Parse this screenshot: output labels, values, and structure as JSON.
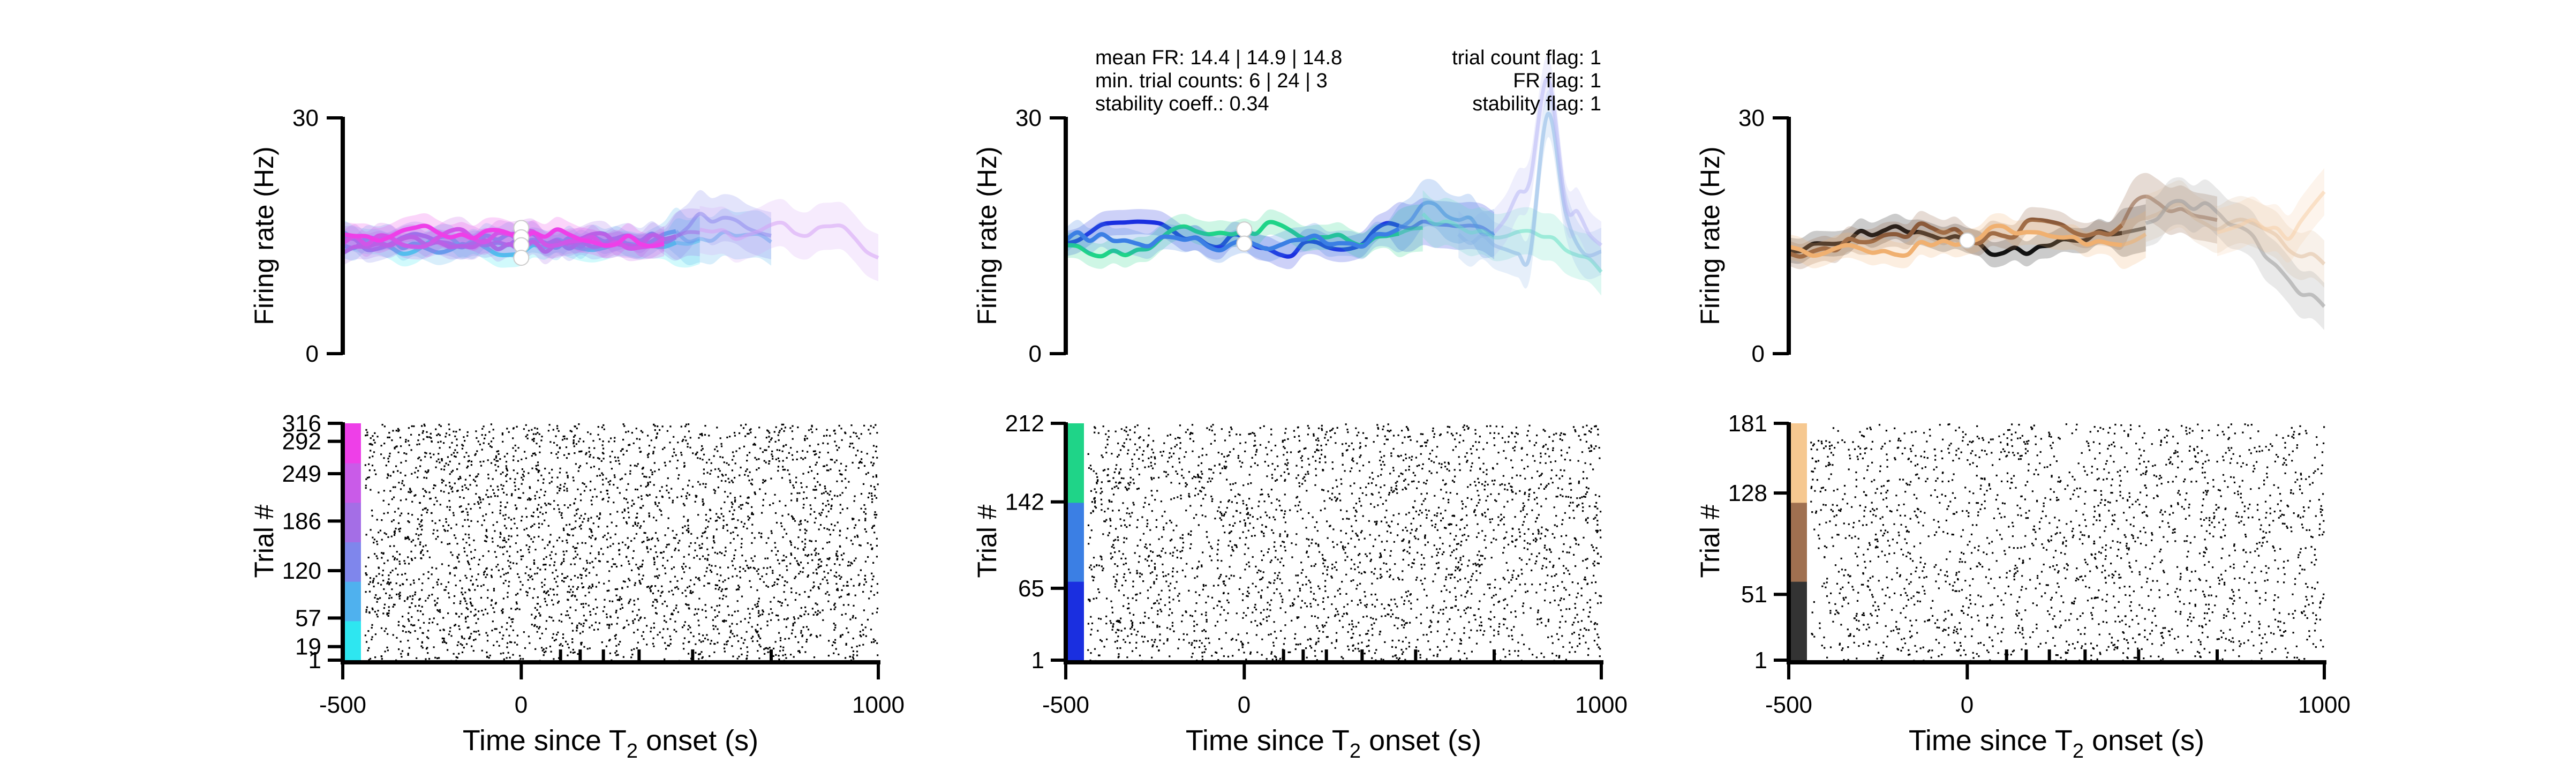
{
  "chart_data": [
    {
      "type": "line",
      "panel": "left",
      "ylabel": "Firing rate (Hz)",
      "ylim": [
        0,
        30
      ],
      "yticks": [
        "0",
        "30"
      ],
      "xlim": [
        -500,
        1000
      ],
      "colors": [
        "#2ee6f0",
        "#4fb1ee",
        "#7f86ec",
        "#a46ee6",
        "#c95be8",
        "#ee3fe8",
        "#d6a3f5"
      ],
      "series": [
        {
          "color": "#2ee6f0",
          "x": [
            -500,
            -400,
            -300,
            -200,
            -100,
            0,
            100,
            200,
            300,
            400,
            500
          ],
          "y": [
            15.5,
            14.2,
            13.0,
            14.8,
            13.5,
            12.8,
            14.5,
            13.2,
            14.0,
            13.6,
            14.4
          ]
        },
        {
          "color": "#4fb1ee",
          "x": [
            -500,
            -400,
            -300,
            -200,
            -100,
            0,
            100,
            200,
            300,
            400,
            500,
            600,
            700
          ],
          "y": [
            13.8,
            14.6,
            14.0,
            13.2,
            15.0,
            14.2,
            13.5,
            14.8,
            13.9,
            15.2,
            14.6,
            15.0,
            14.2
          ]
        },
        {
          "color": "#7f86ec",
          "x": [
            -500,
            -400,
            -300,
            -200,
            -100,
            0,
            100,
            200,
            300,
            400,
            500,
            600,
            700
          ],
          "y": [
            14.6,
            13.4,
            15.2,
            14.0,
            13.8,
            15.0,
            14.4,
            13.6,
            15.0,
            14.2,
            17.8,
            17.0,
            15.0
          ]
        },
        {
          "color": "#a46ee6",
          "x": [
            -500,
            -400,
            -300,
            -200,
            -100,
            0,
            100,
            200,
            300,
            400,
            500
          ],
          "y": [
            12.8,
            14.0,
            14.8,
            13.6,
            14.4,
            13.2,
            14.0,
            15.2,
            13.8,
            14.6,
            15.4
          ]
        },
        {
          "color": "#c95be8",
          "x": [
            -500,
            -400,
            -300,
            -200,
            -100,
            0,
            100,
            200,
            300,
            400
          ],
          "y": [
            14.0,
            15.0,
            13.6,
            15.6,
            14.2,
            15.4,
            13.8,
            14.8,
            13.4,
            14.6
          ]
        },
        {
          "color": "#ee3fe8",
          "x": [
            -500,
            -400,
            -300,
            -200,
            -100,
            0,
            100,
            200,
            300,
            400
          ],
          "y": [
            15.2,
            14.4,
            16.0,
            14.8,
            15.6,
            14.6,
            15.8,
            14.2,
            15.0,
            14.0
          ]
        },
        {
          "color": "#d6a3f5",
          "x": [
            500,
            600,
            700,
            800,
            900,
            1000
          ],
          "y": [
            15.8,
            14.6,
            16.4,
            15.0,
            16.2,
            12.2
          ]
        }
      ],
      "t2_markers": [
        16.0,
        14.8,
        13.8,
        12.2
      ]
    },
    {
      "type": "raster",
      "panel": "left",
      "ylabel": "Trial #",
      "xlabel": "Time since T",
      "xlabel_sub": "2",
      "xlabel_suffix": " onset (s)",
      "xticks": [
        "-500",
        "0",
        "1000"
      ],
      "yticks": [
        "1",
        "19",
        "57",
        "120",
        "186",
        "249",
        "292",
        "316"
      ],
      "ytick_values": [
        1,
        19,
        57,
        120,
        186,
        249,
        292,
        316
      ],
      "ymax": 316,
      "xlim": [
        -500,
        1000
      ],
      "extra_tick_x": [
        110,
        165,
        230,
        330,
        480,
        700
      ],
      "band_colors": [
        "#2ee6f0",
        "#4fb1ee",
        "#7f86ec",
        "#a46ee6",
        "#c95be8",
        "#ee3fe8"
      ],
      "dot_count": 3300
    },
    {
      "type": "line",
      "panel": "middle",
      "ylabel": "Firing rate (Hz)",
      "ylim": [
        0,
        30
      ],
      "yticks": [
        "0",
        "30"
      ],
      "xlim": [
        -500,
        1000
      ],
      "annotation_left": [
        "mean FR: 14.4 | 14.9 | 14.8",
        "min. trial counts: 6 | 24 | 3",
        "stability coeff.: 0.34"
      ],
      "annotation_right": [
        "trial count flag: 1",
        "FR flag: 1",
        "stability flag: 1"
      ],
      "colors": [
        "#1a2fe0",
        "#1fd488",
        "#3b7fe4",
        "#66e0c4",
        "#8cb8e6",
        "#b8b8f5"
      ],
      "series": [
        {
          "color": "#1a2fe0",
          "x": [
            -500,
            -400,
            -300,
            -200,
            -100,
            0,
            100,
            200,
            300,
            400,
            500,
            600,
            700
          ],
          "y": [
            14.0,
            16.4,
            16.8,
            15.6,
            13.8,
            14.8,
            12.6,
            14.2,
            13.4,
            16.6,
            16.8,
            16.2,
            15.0
          ]
        },
        {
          "color": "#1fd488",
          "x": [
            -500,
            -400,
            -300,
            -200,
            -100,
            0,
            100,
            200,
            300,
            400,
            500
          ],
          "y": [
            13.8,
            12.4,
            13.2,
            15.8,
            15.2,
            15.6,
            16.4,
            14.8,
            14.2,
            15.0,
            16.0
          ]
        },
        {
          "color": "#3b7fe4",
          "x": [
            -500,
            -400,
            -300,
            -200,
            -100,
            0,
            100,
            200,
            300,
            400,
            500,
            600,
            700
          ],
          "y": [
            14.4,
            15.2,
            14.0,
            14.8,
            13.6,
            14.4,
            13.8,
            15.0,
            14.0,
            15.2,
            19.0,
            17.0,
            15.4
          ]
        },
        {
          "color": "#66e0c4",
          "x": [
            500,
            600,
            700,
            800,
            900,
            1000
          ],
          "y": [
            17.8,
            16.2,
            14.8,
            15.6,
            13.2,
            10.4
          ]
        },
        {
          "color": "#8cb8e6",
          "x": [
            600,
            700,
            800,
            850,
            900,
            950,
            1000
          ],
          "y": [
            15.2,
            13.8,
            12.6,
            30.5,
            18.0,
            12.8,
            13.0
          ]
        },
        {
          "color": "#b8b8f5",
          "x": [
            700,
            800,
            850,
            900,
            1000
          ],
          "y": [
            15.4,
            22.0,
            35.0,
            19.0,
            13.8
          ]
        }
      ],
      "t2_markers": [
        15.8,
        14.0
      ]
    },
    {
      "type": "raster",
      "panel": "middle",
      "ylabel": "Trial #",
      "xlabel": "Time since T",
      "xlabel_sub": "2",
      "xlabel_suffix": " onset (s)",
      "xticks": [
        "-500",
        "0",
        "1000"
      ],
      "yticks": [
        "1",
        "65",
        "142",
        "212"
      ],
      "ytick_values": [
        1,
        65,
        142,
        212
      ],
      "ymax": 212,
      "xlim": [
        -500,
        1000
      ],
      "extra_tick_x": [
        110,
        165,
        230,
        330,
        480,
        700
      ],
      "band_colors": [
        "#1a2fe0",
        "#3b7fe4",
        "#1fd488"
      ],
      "dot_count": 2700
    },
    {
      "type": "line",
      "panel": "right",
      "ylabel": "Firing rate (Hz)",
      "ylim": [
        0,
        30
      ],
      "yticks": [
        "0",
        "30"
      ],
      "xlim": [
        -500,
        1000
      ],
      "colors": [
        "#111111",
        "#8b5a3a",
        "#f0b070",
        "#e0c0a0",
        "#9a9a9a",
        "#f8cfa8"
      ],
      "series": [
        {
          "color": "#111111",
          "x": [
            -500,
            -400,
            -300,
            -200,
            -100,
            0,
            100,
            200,
            300,
            400,
            500
          ],
          "y": [
            13.2,
            14.0,
            15.6,
            16.2,
            15.0,
            14.4,
            12.8,
            13.6,
            14.4,
            15.2,
            16.0
          ]
        },
        {
          "color": "#8b5a3a",
          "x": [
            -500,
            -400,
            -300,
            -200,
            -100,
            0,
            100,
            200,
            300,
            400,
            500,
            600,
            700
          ],
          "y": [
            12.8,
            13.4,
            14.2,
            15.2,
            16.0,
            14.6,
            15.0,
            17.0,
            15.4,
            15.2,
            20.0,
            18.4,
            17.0
          ]
        },
        {
          "color": "#f0b070",
          "x": [
            -500,
            -400,
            -300,
            -200,
            -100,
            0,
            100,
            200,
            300,
            400,
            500
          ],
          "y": [
            13.6,
            12.8,
            13.4,
            12.6,
            13.8,
            14.2,
            16.2,
            15.4,
            14.8,
            14.0,
            15.2
          ]
        },
        {
          "color": "#e0c0a0",
          "x": [
            500,
            600,
            700,
            800,
            900,
            1000
          ],
          "y": [
            17.2,
            19.0,
            15.8,
            16.6,
            13.2,
            11.4
          ]
        },
        {
          "color": "#9a9a9a",
          "x": [
            500,
            600,
            700,
            800,
            900,
            1000
          ],
          "y": [
            16.6,
            19.4,
            18.0,
            15.0,
            9.4,
            6.0
          ]
        },
        {
          "color": "#f8cfa8",
          "x": [
            700,
            800,
            900,
            1000
          ],
          "y": [
            15.4,
            17.0,
            14.6,
            20.6
          ]
        }
      ],
      "t2_markers": [
        14.4
      ]
    },
    {
      "type": "raster",
      "panel": "right",
      "ylabel": "Trial #",
      "xlabel": "Time since T",
      "xlabel_sub": "2",
      "xlabel_suffix": " onset (s)",
      "xticks": [
        "-500",
        "0",
        "1000"
      ],
      "yticks": [
        "1",
        "51",
        "128",
        "181"
      ],
      "ytick_values": [
        1,
        51,
        128,
        181
      ],
      "ymax": 181,
      "xlim": [
        -500,
        1000
      ],
      "extra_tick_x": [
        110,
        165,
        230,
        330,
        480,
        700
      ],
      "band_colors": [
        "#333333",
        "#a07050",
        "#f6c890"
      ],
      "dot_count": 2100
    }
  ]
}
